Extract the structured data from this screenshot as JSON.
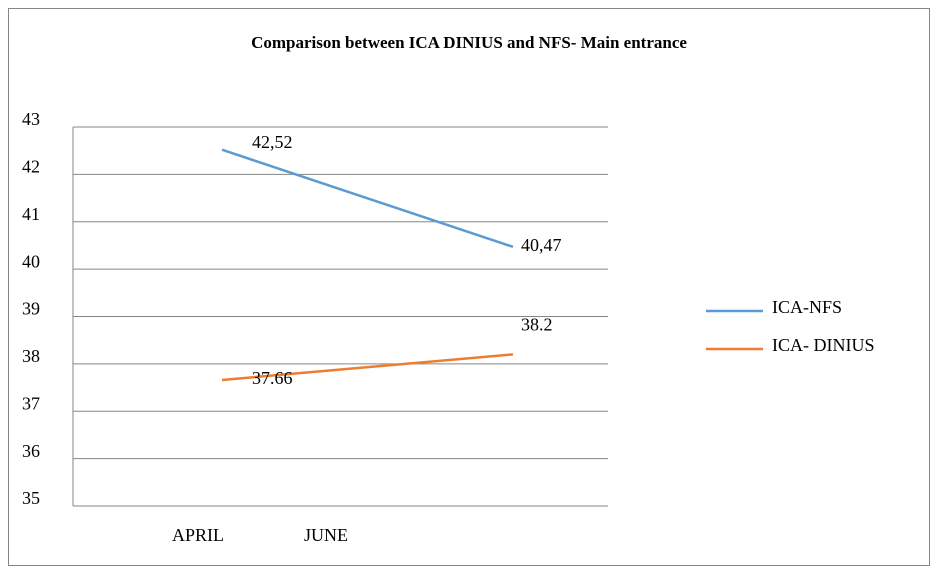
{
  "chart_data": {
    "type": "line",
    "title": "Comparison between ICA DINIUS and NFS- Main entrance",
    "categories": [
      "APRIL",
      "JUNE"
    ],
    "series": [
      {
        "name": "ICA-NFS",
        "color": "#5b9bd5",
        "values": [
          42.52,
          40.47
        ],
        "value_labels": [
          "42,52",
          "40,47"
        ]
      },
      {
        "name": "ICA- DINIUS",
        "color": "#ed7d31",
        "values": [
          37.66,
          38.2
        ],
        "value_labels": [
          "37.66",
          "38.2"
        ]
      }
    ],
    "ylim": [
      35,
      43
    ],
    "yticks": [
      35,
      36,
      37,
      38,
      39,
      40,
      41,
      42,
      43
    ],
    "grid": true,
    "legend": "right"
  }
}
